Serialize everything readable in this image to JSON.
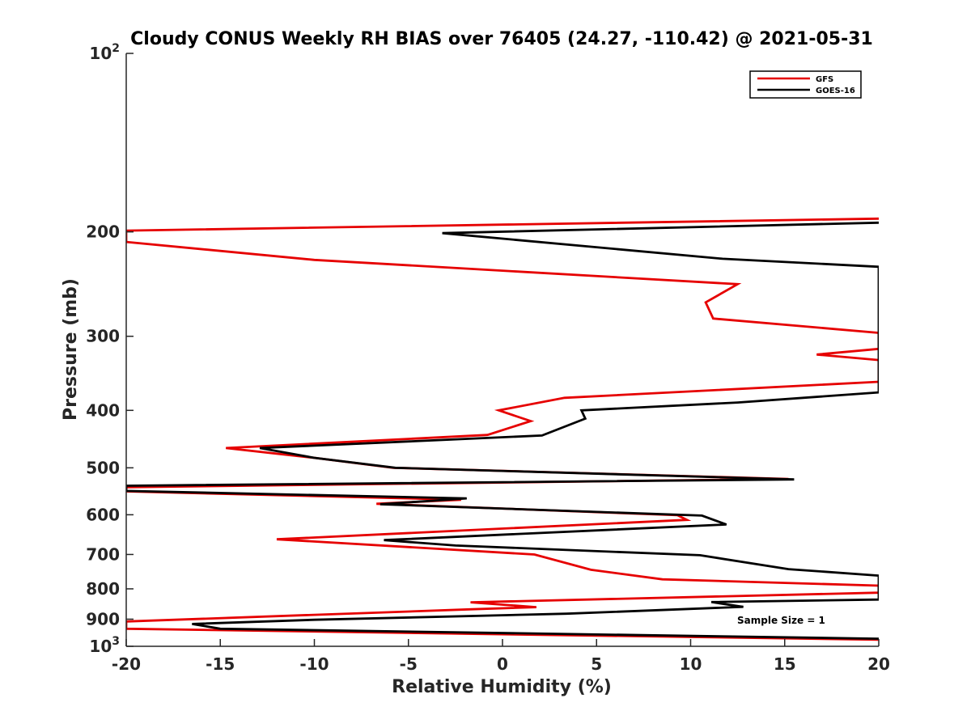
{
  "chart_data": {
    "type": "line",
    "title": "Cloudy CONUS Weekly RH BIAS over 76405 (24.27, -110.42) @ 2021-05-31",
    "xlabel": "Relative Humidity (%)",
    "ylabel": "Pressure (mb)",
    "xlim": [
      -20,
      20
    ],
    "ylim": [
      100,
      1000
    ],
    "y_scale": "log",
    "y_reversed": true,
    "x_ticks": [
      -20,
      -15,
      -10,
      -5,
      0,
      5,
      10,
      15,
      20
    ],
    "x_tick_labels": [
      "-20",
      "-15",
      "-10",
      "-5",
      "0",
      "5",
      "10",
      "15",
      "20"
    ],
    "y_ticks": [
      100,
      200,
      300,
      400,
      500,
      600,
      700,
      800,
      900,
      1000
    ],
    "y_tick_labels": [
      {
        "base": "10",
        "exp": "2"
      },
      {
        "text": "200"
      },
      {
        "text": "300"
      },
      {
        "text": "400"
      },
      {
        "text": "500"
      },
      {
        "text": "600"
      },
      {
        "text": "700"
      },
      {
        "text": "800"
      },
      {
        "text": "900"
      },
      {
        "base": "10",
        "exp": "3"
      }
    ],
    "grid": false,
    "legend_location": "top-right",
    "annotation": "Sample Size = 1",
    "series": [
      {
        "name": "GFS",
        "color": "#e60000",
        "points": [
          [
            20,
            190
          ],
          [
            -20,
            199
          ],
          [
            -20,
            208
          ],
          [
            -10,
            223
          ],
          [
            12.5,
            245
          ],
          [
            10.8,
            263
          ],
          [
            11.2,
            280
          ],
          [
            20,
            296
          ],
          [
            20,
            315
          ],
          [
            16.7,
            322
          ],
          [
            20,
            329
          ],
          [
            20,
            358
          ],
          [
            3.3,
            381
          ],
          [
            -0.2,
            400
          ],
          [
            1.5,
            417
          ],
          [
            -0.8,
            440
          ],
          [
            -14.7,
            463
          ],
          [
            -10,
            481
          ],
          [
            -5.8,
            500
          ],
          [
            15.2,
            522
          ],
          [
            -20,
            539
          ],
          [
            -20,
            548
          ],
          [
            -2.2,
            566
          ],
          [
            -6.7,
            575
          ],
          [
            9.3,
            601
          ],
          [
            9.8,
            612
          ],
          [
            -12,
            660
          ],
          [
            1.7,
            700
          ],
          [
            4.7,
            743
          ],
          [
            8.5,
            771
          ],
          [
            20,
            790
          ],
          [
            20,
            812
          ],
          [
            -1.7,
            843
          ],
          [
            1.8,
            859
          ],
          [
            -1.6,
            866
          ],
          [
            -20,
            908
          ],
          [
            -20,
            934
          ],
          [
            20,
            975
          ]
        ]
      },
      {
        "name": "GOES-16",
        "color": "#000000",
        "points": [
          [
            20,
            193
          ],
          [
            -3.2,
            201
          ],
          [
            11.7,
            222
          ],
          [
            20,
            229
          ],
          [
            20,
            373
          ],
          [
            12.5,
            388
          ],
          [
            4.2,
            400
          ],
          [
            4.4,
            413
          ],
          [
            2.1,
            441
          ],
          [
            -12.9,
            463
          ],
          [
            -10,
            481
          ],
          [
            -5.7,
            500
          ],
          [
            15.5,
            523
          ],
          [
            -20,
            536
          ],
          [
            -20,
            547
          ],
          [
            -1.9,
            563
          ],
          [
            -6.5,
            576
          ],
          [
            10.6,
            602
          ],
          [
            11.9,
            623
          ],
          [
            -6.3,
            662
          ],
          [
            -2.5,
            676
          ],
          [
            10.5,
            702
          ],
          [
            15.2,
            741
          ],
          [
            20,
            760
          ],
          [
            20,
            834
          ],
          [
            11.1,
            842
          ],
          [
            12.8,
            858
          ],
          [
            3.4,
            881
          ],
          [
            -10,
            902
          ],
          [
            -16.5,
            917
          ],
          [
            -15,
            934
          ],
          [
            20,
            971
          ]
        ]
      }
    ]
  }
}
